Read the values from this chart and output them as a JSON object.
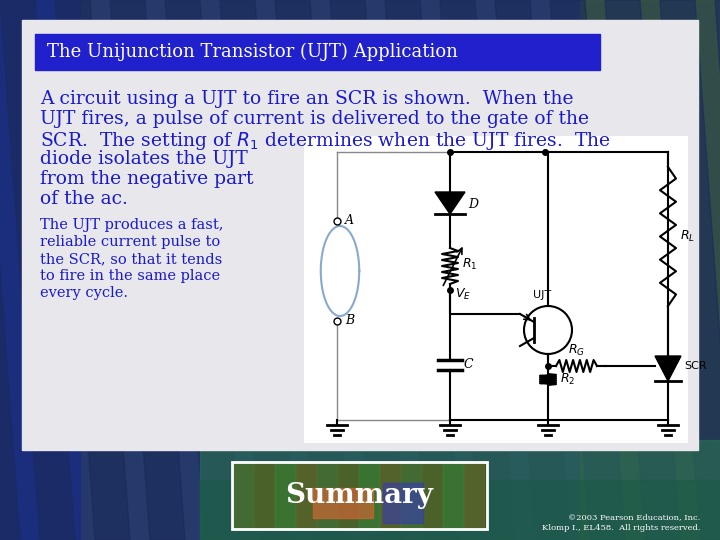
{
  "title": "Summary",
  "bg_color": "#2a4a7a",
  "bg_stripe_color": "#1a3060",
  "bg_teal": "#2a6a5a",
  "content_bg": "#e8e8ec",
  "header_bg": "#2020cc",
  "header_text": "The Unijunction Transistor (UJT) Application",
  "header_text_color": "#ffffff",
  "body_text_color": "#1a1acc",
  "title_color": "#ffffff",
  "title_fontsize": 20,
  "header_fontsize": 13,
  "body_large_fontsize": 13.5,
  "body_small_fontsize": 10.5,
  "footer_text": "©2003 Pearson Education, Inc.\nKlomp I., EL458.  All rights reserved."
}
